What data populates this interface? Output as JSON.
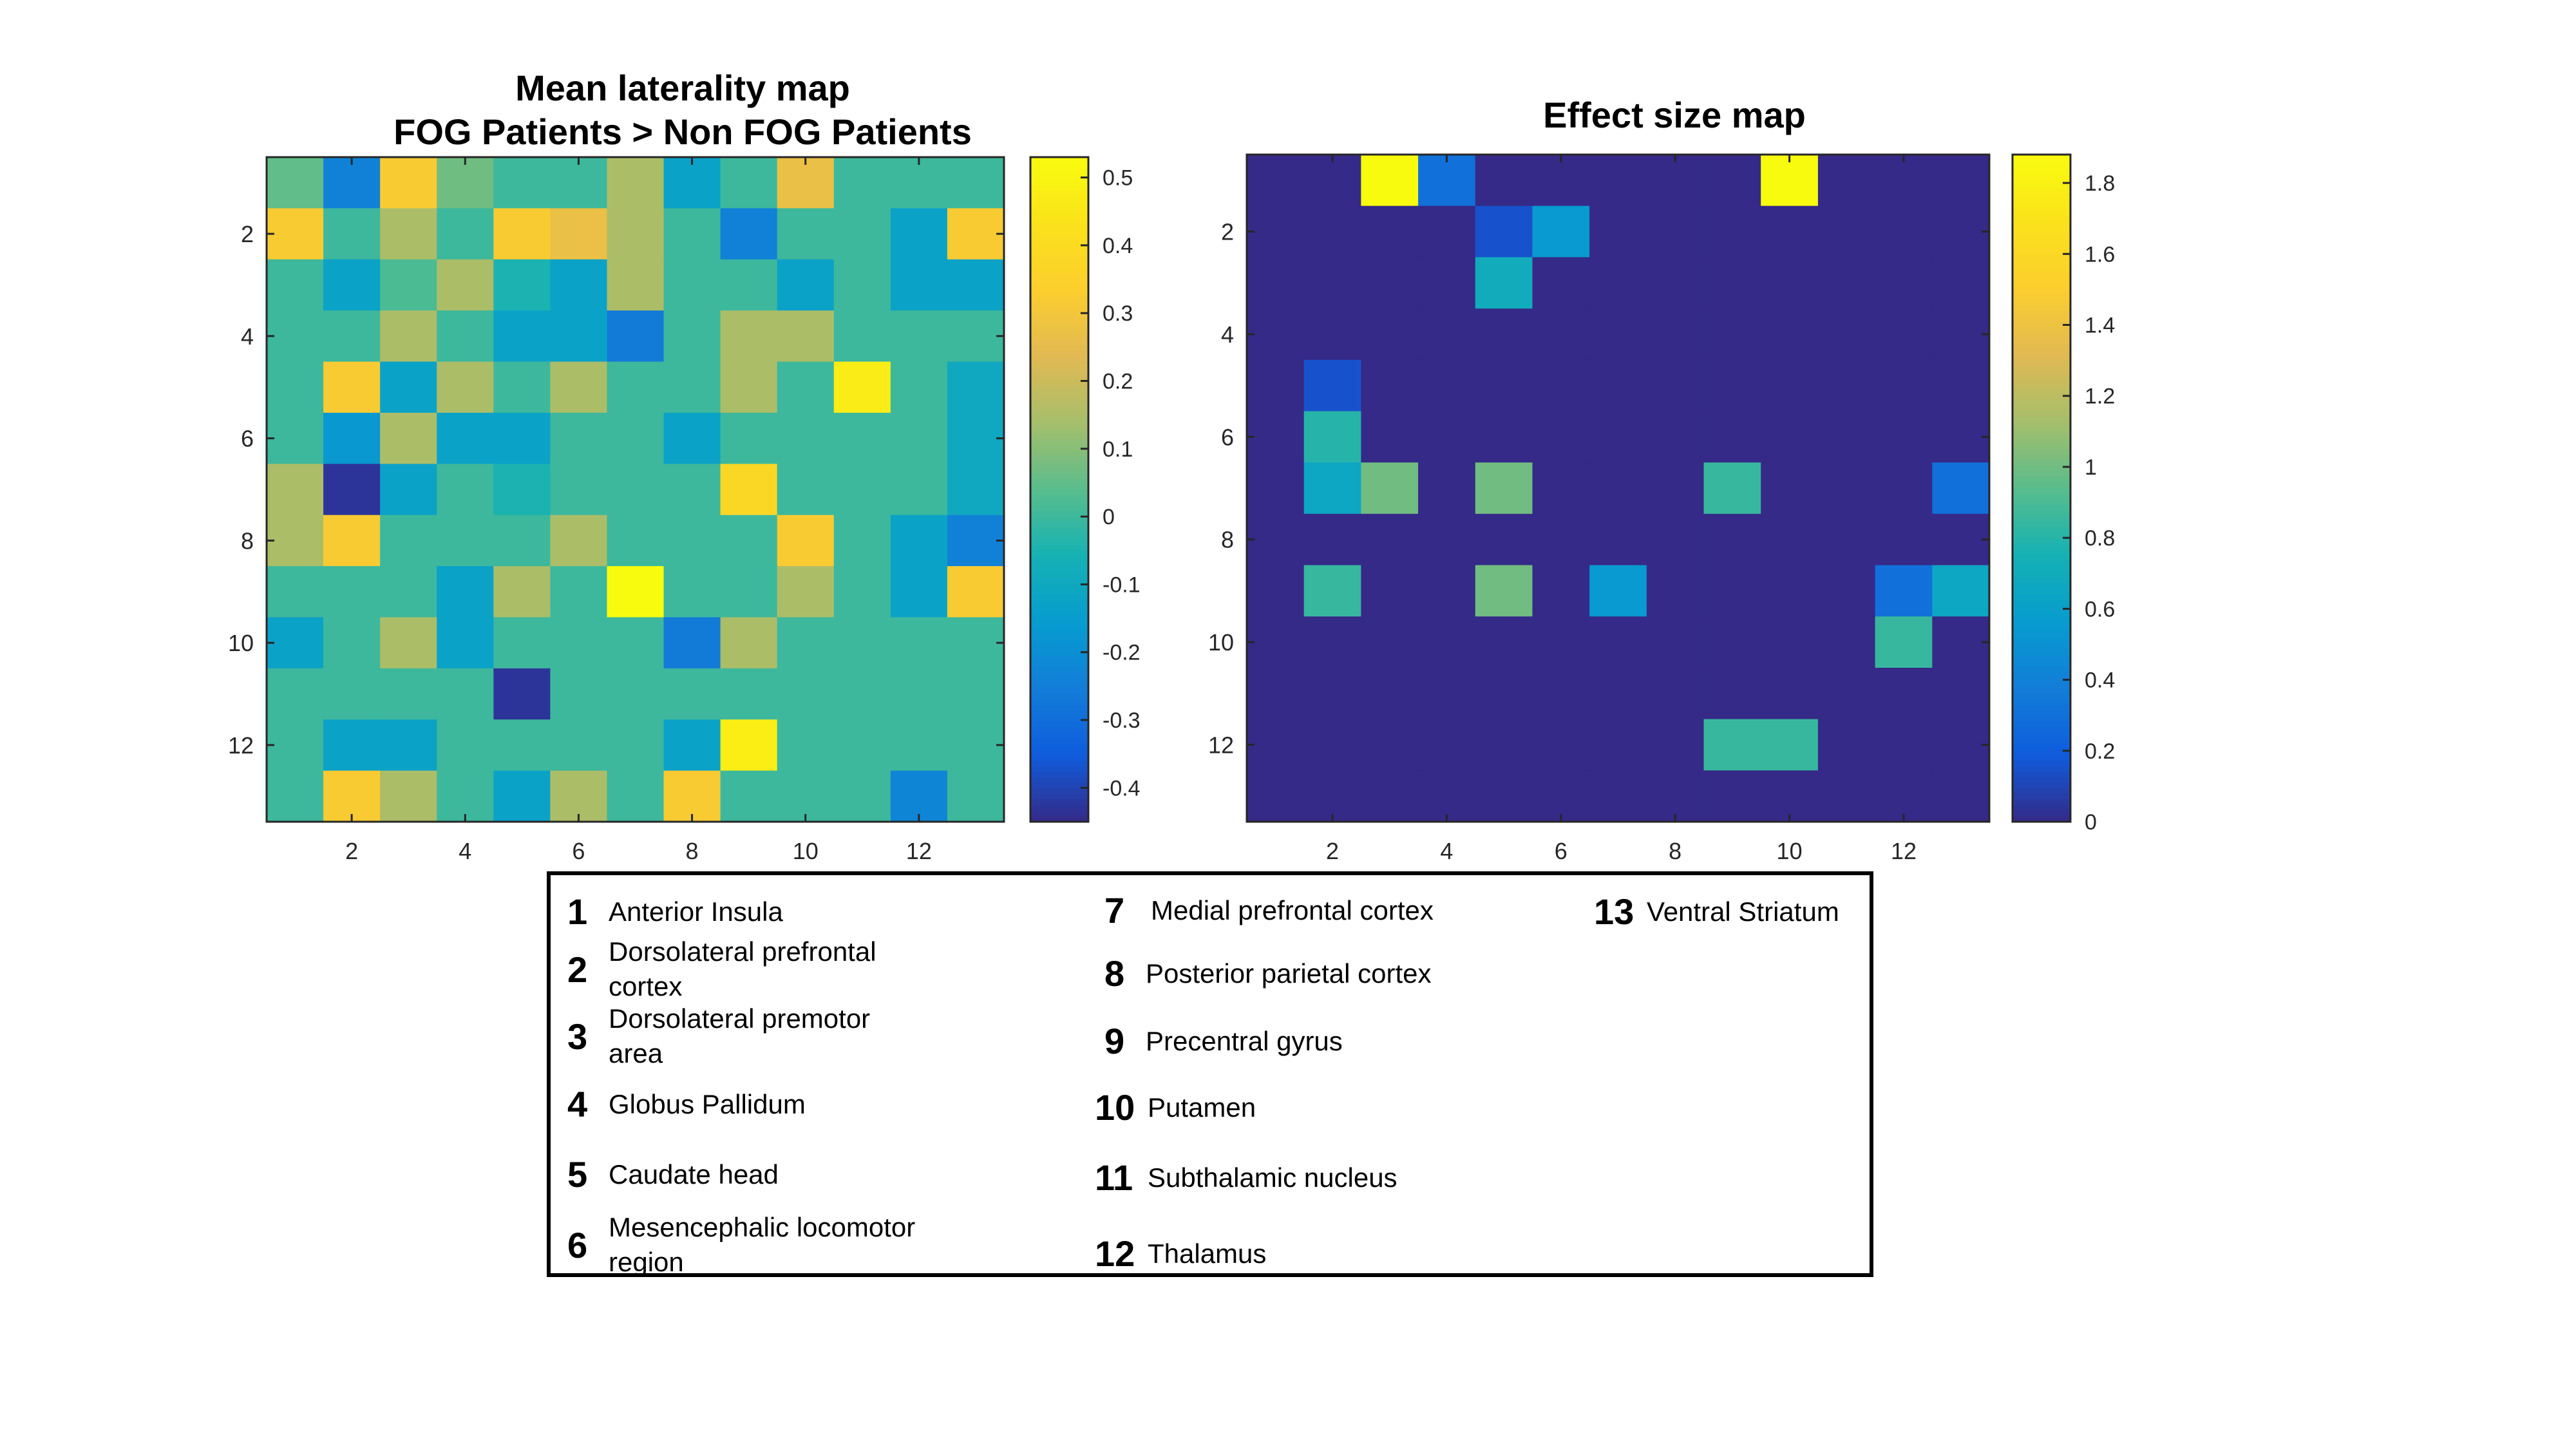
{
  "chart_data": [
    {
      "type": "heatmap",
      "title": [
        "Mean laterality map",
        "FOG Patients > Non FOG Patients"
      ],
      "colormap": "parula",
      "clim": [
        -0.45,
        0.53
      ],
      "x_ticks": [
        2,
        4,
        6,
        8,
        10,
        12
      ],
      "y_ticks": [
        2,
        4,
        6,
        8,
        10,
        12
      ],
      "colorbar_ticks": [
        0.5,
        0.4,
        0.3,
        0.2,
        0.1,
        0,
        -0.1,
        -0.2,
        -0.3,
        -0.4
      ],
      "colorbar_tick_labels": [
        "0.5",
        "0.4",
        "0.3",
        "0.2",
        "0.1",
        "0",
        "-0.1",
        "-0.2",
        "-0.3",
        "-0.4"
      ],
      "matrix": [
        [
          0.05,
          -0.24,
          0.32,
          0.07,
          0.0,
          0.0,
          0.15,
          -0.13,
          0.0,
          0.27,
          0.0,
          0.0,
          0.0
        ],
        [
          0.32,
          0.0,
          0.15,
          0.0,
          0.32,
          0.27,
          0.15,
          0.0,
          -0.24,
          0.0,
          0.0,
          -0.13,
          0.32
        ],
        [
          0.0,
          -0.13,
          0.02,
          0.15,
          -0.05,
          -0.13,
          0.15,
          0.0,
          0.0,
          -0.13,
          0.0,
          -0.13,
          -0.13
        ],
        [
          0.0,
          0.0,
          0.15,
          0.0,
          -0.13,
          -0.13,
          -0.26,
          0.0,
          0.15,
          0.15,
          0.0,
          0.0,
          0.0
        ],
        [
          0.0,
          0.32,
          -0.13,
          0.15,
          0.0,
          0.15,
          0.0,
          0.0,
          0.15,
          0.0,
          0.47,
          0.0,
          -0.1
        ],
        [
          0.0,
          -0.17,
          0.15,
          -0.13,
          -0.13,
          0.0,
          0.0,
          -0.13,
          0.0,
          0.0,
          0.0,
          0.0,
          -0.1
        ],
        [
          0.15,
          -0.43,
          -0.13,
          0.0,
          -0.05,
          0.0,
          0.0,
          0.0,
          0.38,
          0.0,
          0.0,
          0.0,
          -0.1
        ],
        [
          0.15,
          0.32,
          0.0,
          0.0,
          0.0,
          0.15,
          0.0,
          0.0,
          0.0,
          0.32,
          0.0,
          -0.13,
          -0.24
        ],
        [
          0.0,
          0.0,
          0.0,
          -0.13,
          0.15,
          0.0,
          0.53,
          0.0,
          0.0,
          0.15,
          0.0,
          -0.13,
          0.32
        ],
        [
          -0.13,
          0.0,
          0.15,
          -0.13,
          0.0,
          0.0,
          0.0,
          -0.26,
          0.15,
          0.0,
          0.0,
          0.0,
          0.0
        ],
        [
          0.0,
          0.0,
          0.0,
          0.0,
          -0.43,
          0.0,
          0.0,
          0.0,
          0.0,
          0.0,
          0.0,
          0.0,
          0.0
        ],
        [
          0.0,
          -0.13,
          -0.13,
          0.0,
          0.0,
          0.0,
          0.0,
          -0.13,
          0.48,
          0.0,
          0.0,
          0.0,
          0.0
        ],
        [
          0.0,
          0.32,
          0.15,
          0.0,
          -0.13,
          0.15,
          0.0,
          0.32,
          0.0,
          0.0,
          0.0,
          -0.23,
          0.0
        ]
      ]
    },
    {
      "type": "heatmap",
      "title": [
        "Effect size map"
      ],
      "colormap": "parula",
      "clim": [
        0,
        1.88
      ],
      "x_ticks": [
        2,
        4,
        6,
        8,
        10,
        12
      ],
      "y_ticks": [
        2,
        4,
        6,
        8,
        10,
        12
      ],
      "colorbar_ticks": [
        1.8,
        1.6,
        1.4,
        1.2,
        1,
        0.8,
        0.6,
        0.4,
        0.2,
        0
      ],
      "colorbar_tick_labels": [
        "1.8",
        "1.6",
        "1.4",
        "1.2",
        "1",
        "0.8",
        "0.6",
        "0.4",
        "0.2",
        "0"
      ],
      "matrix": [
        [
          0,
          0,
          1.88,
          0.3,
          0,
          0,
          0,
          0,
          0,
          1.88,
          0,
          0,
          0
        ],
        [
          0,
          0,
          0,
          0,
          0.15,
          0.55,
          0,
          0,
          0,
          0,
          0,
          0,
          0
        ],
        [
          0,
          0,
          0,
          0,
          0.7,
          0,
          0,
          0,
          0,
          0,
          0,
          0,
          0
        ],
        [
          0,
          0,
          0,
          0,
          0,
          0,
          0,
          0,
          0,
          0,
          0,
          0,
          0
        ],
        [
          0,
          0.15,
          0,
          0,
          0,
          0,
          0,
          0,
          0,
          0,
          0,
          0,
          0
        ],
        [
          0,
          0.8,
          0,
          0,
          0,
          0,
          0,
          0,
          0,
          0,
          0,
          0,
          0
        ],
        [
          0,
          0.65,
          1.0,
          0,
          1.0,
          0,
          0,
          0,
          0.85,
          0,
          0,
          0,
          0.3
        ],
        [
          0,
          0,
          0,
          0,
          0,
          0,
          0,
          0,
          0,
          0,
          0,
          0,
          0
        ],
        [
          0,
          0.85,
          0,
          0,
          1.0,
          0,
          0.55,
          0,
          0,
          0,
          0,
          0.3,
          0.65
        ],
        [
          0,
          0,
          0,
          0,
          0,
          0,
          0,
          0,
          0,
          0,
          0,
          0.85,
          0
        ],
        [
          0,
          0,
          0,
          0,
          0,
          0,
          0,
          0,
          0,
          0,
          0,
          0,
          0
        ],
        [
          0,
          0,
          0,
          0,
          0,
          0,
          0,
          0,
          0.85,
          0.85,
          0,
          0,
          0
        ],
        [
          0,
          0,
          0,
          0,
          0,
          0,
          0,
          0,
          0,
          0,
          0,
          0,
          0
        ]
      ]
    }
  ],
  "region_legend": [
    {
      "num": "1",
      "label": "Anterior Insula"
    },
    {
      "num": "2",
      "label": "Dorsolateral prefrontal cortex"
    },
    {
      "num": "3",
      "label": "Dorsolateral premotor area"
    },
    {
      "num": "4",
      "label": "Globus Pallidum"
    },
    {
      "num": "5",
      "label": "Caudate head"
    },
    {
      "num": "6",
      "label": "Mesencephalic locomotor region"
    },
    {
      "num": "7",
      "label": "Medial prefrontal cortex"
    },
    {
      "num": "8",
      "label": "Posterior parietal cortex"
    },
    {
      "num": "9",
      "label": "Precentral gyrus"
    },
    {
      "num": "10",
      "label": "Putamen"
    },
    {
      "num": "11",
      "label": "Subthalamic nucleus"
    },
    {
      "num": "12",
      "label": "Thalamus"
    },
    {
      "num": "13",
      "label": "Ventral Striatum"
    }
  ]
}
